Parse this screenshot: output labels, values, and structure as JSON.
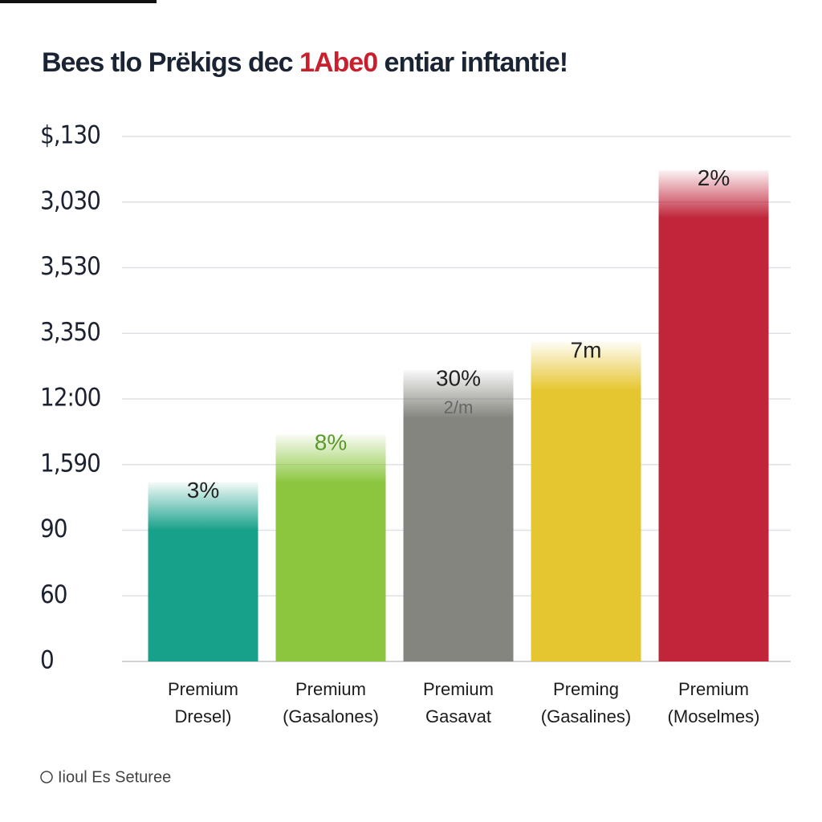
{
  "chart_data": {
    "type": "bar",
    "title": [
      "Bees tlo Prëkigs dec ",
      "1Abe0",
      " entiar inftantie!"
    ],
    "title_colors": [
      "#1a2433",
      "#c8202c",
      "#1a2433"
    ],
    "categories": [
      [
        "Premium",
        "Dresel)"
      ],
      [
        "Premium",
        "(Gasalones)"
      ],
      [
        "Premium",
        "Gasavat"
      ],
      [
        "Preming",
        "(Gasalines)"
      ],
      [
        "Premium",
        "(Moselmes)"
      ]
    ],
    "values": [
      2.73,
      3.46,
      4.44,
      4.87,
      7.49
    ],
    "bar_labels": [
      "3%",
      "8%",
      "30%",
      "7m",
      "2%"
    ],
    "bar_label_colors": [
      "#222222",
      "#5a9a2a",
      "#222222",
      "#222222",
      "#222222"
    ],
    "annotation": "2/m",
    "colors": [
      "#17a08a",
      "#8cc63f",
      "#85857f",
      "#e6c630",
      "#c0253a"
    ],
    "ylim": [
      0,
      8
    ],
    "yticks": [
      0,
      {
        "value": 1,
        "label": "60"
      },
      {
        "value": 2,
        "label": "90"
      },
      {
        "value": 3,
        "label": "1,590"
      },
      {
        "value": 4,
        "label": "12:00"
      },
      {
        "value": 5,
        "label": "3,350"
      },
      {
        "value": 6,
        "label": "3,530"
      },
      {
        "value": 7,
        "label": "3,030"
      },
      {
        "value": 8,
        "label": "$,130"
      }
    ],
    "grid": true,
    "source": "Iioul Es Seturee"
  }
}
